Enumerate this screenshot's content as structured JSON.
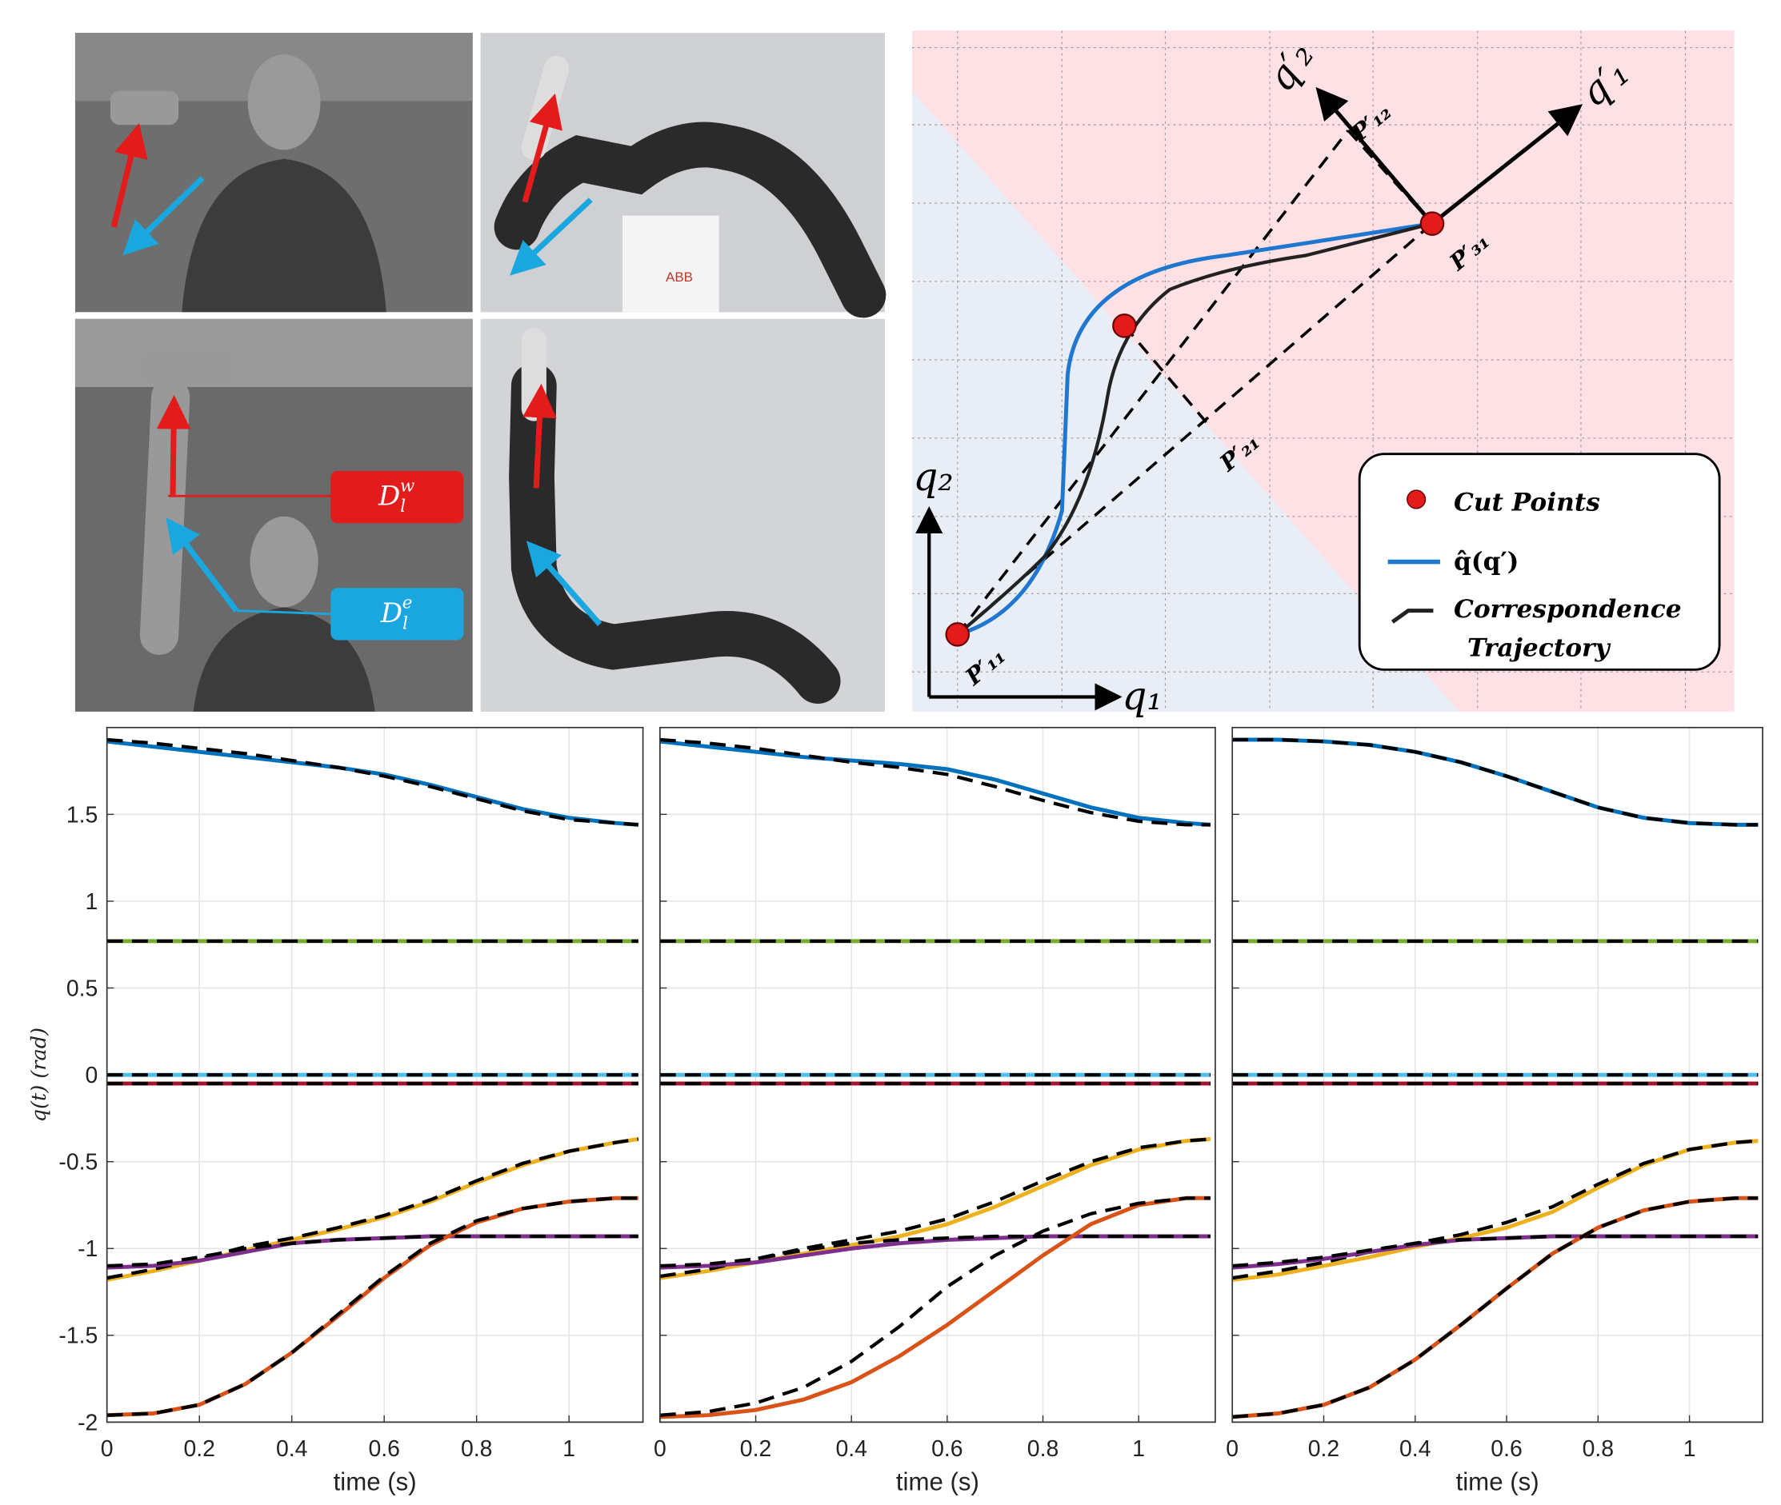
{
  "photos": {
    "label_wrist": {
      "base": "D",
      "sub": "l",
      "sup": "w"
    },
    "label_elbow": {
      "base": "D",
      "sub": "l",
      "sup": "e"
    },
    "robot_brand": "ABB"
  },
  "diagram": {
    "axis_q1_prime": "q′₁",
    "axis_q2_prime": "q′₂",
    "axis_q1": "q₁",
    "axis_q2": "q₂",
    "points": [
      "P′₁₁",
      "P′₂₁",
      "P′₃₁",
      "P′₁₂"
    ],
    "legend": {
      "cut_points": "Cut Points",
      "q_hat": "q̂(q′)",
      "correspondence": "Correspondence",
      "trajectory": "Trajectory"
    }
  },
  "chart_data": [
    {
      "type": "line",
      "ylabel": "q(t)  (rad)",
      "xlabel": "time (s)",
      "xlim": [
        0,
        1.16
      ],
      "ylim": [
        -2,
        2
      ],
      "xticks": [
        0,
        0.2,
        0.4,
        0.6,
        0.8,
        1
      ],
      "yticks": [
        -2,
        -1.5,
        -1,
        -0.5,
        0,
        0.5,
        1,
        1.5
      ],
      "grid": true,
      "x": [
        0,
        0.1,
        0.2,
        0.3,
        0.4,
        0.5,
        0.6,
        0.7,
        0.8,
        0.9,
        1,
        1.1,
        1.15
      ],
      "series": [
        {
          "color": "#0072bd",
          "values": [
            1.92,
            1.89,
            1.86,
            1.83,
            1.8,
            1.77,
            1.73,
            1.67,
            1.6,
            1.53,
            1.48,
            1.45,
            1.44
          ]
        },
        {
          "color": "#000000",
          "dash": true,
          "values": [
            1.93,
            1.91,
            1.88,
            1.85,
            1.81,
            1.77,
            1.72,
            1.66,
            1.59,
            1.52,
            1.47,
            1.45,
            1.44
          ]
        },
        {
          "color": "#77ac30",
          "values": [
            0.77,
            0.77,
            0.77,
            0.77,
            0.77,
            0.77,
            0.77,
            0.77,
            0.77,
            0.77,
            0.77,
            0.77,
            0.77
          ]
        },
        {
          "color": "#000000",
          "dash": true,
          "values": [
            0.77,
            0.77,
            0.77,
            0.77,
            0.77,
            0.77,
            0.77,
            0.77,
            0.77,
            0.77,
            0.77,
            0.77,
            0.77
          ]
        },
        {
          "color": "#4dbeee",
          "values": [
            0,
            0,
            0,
            0,
            0,
            0,
            0,
            0,
            0,
            0,
            0,
            0,
            0
          ]
        },
        {
          "color": "#000000",
          "dash": true,
          "values": [
            0,
            0,
            0,
            0,
            0,
            0,
            0,
            0,
            0,
            0,
            0,
            0,
            0
          ]
        },
        {
          "color": "#a2142f",
          "values": [
            -0.05,
            -0.05,
            -0.05,
            -0.05,
            -0.05,
            -0.05,
            -0.05,
            -0.05,
            -0.05,
            -0.05,
            -0.05,
            -0.05,
            -0.05
          ]
        },
        {
          "color": "#000000",
          "dash": true,
          "values": [
            -0.05,
            -0.05,
            -0.05,
            -0.05,
            -0.05,
            -0.05,
            -0.05,
            -0.05,
            -0.05,
            -0.05,
            -0.05,
            -0.05,
            -0.05
          ]
        },
        {
          "color": "#edb120",
          "values": [
            -1.18,
            -1.13,
            -1.07,
            -1.01,
            -0.95,
            -0.89,
            -0.82,
            -0.73,
            -0.62,
            -0.52,
            -0.44,
            -0.39,
            -0.37
          ]
        },
        {
          "color": "#000000",
          "dash": true,
          "values": [
            -1.17,
            -1.12,
            -1.06,
            -0.99,
            -0.94,
            -0.88,
            -0.81,
            -0.72,
            -0.61,
            -0.51,
            -0.44,
            -0.39,
            -0.37
          ]
        },
        {
          "color": "#7e2f8e",
          "values": [
            -1.11,
            -1.1,
            -1.07,
            -1.02,
            -0.97,
            -0.95,
            -0.94,
            -0.93,
            -0.93,
            -0.93,
            -0.93,
            -0.93,
            -0.93
          ]
        },
        {
          "color": "#000000",
          "dash": true,
          "values": [
            -1.1,
            -1.09,
            -1.05,
            -1.0,
            -0.97,
            -0.95,
            -0.94,
            -0.93,
            -0.93,
            -0.93,
            -0.93,
            -0.93,
            -0.93
          ]
        },
        {
          "color": "#d95319",
          "values": [
            -1.96,
            -1.95,
            -1.9,
            -1.78,
            -1.6,
            -1.39,
            -1.17,
            -0.98,
            -0.85,
            -0.77,
            -0.73,
            -0.71,
            -0.71
          ]
        },
        {
          "color": "#000000",
          "dash": true,
          "values": [
            -1.96,
            -1.95,
            -1.9,
            -1.78,
            -1.6,
            -1.38,
            -1.16,
            -0.97,
            -0.84,
            -0.77,
            -0.73,
            -0.71,
            -0.71
          ]
        }
      ]
    },
    {
      "type": "line",
      "xlabel": "time (s)",
      "xlim": [
        0,
        1.16
      ],
      "ylim": [
        -2,
        2
      ],
      "xticks": [
        0,
        0.2,
        0.4,
        0.6,
        0.8,
        1
      ],
      "yticks": [
        -2,
        -1.5,
        -1,
        -0.5,
        0,
        0.5,
        1,
        1.5
      ],
      "grid": true,
      "x": [
        0,
        0.1,
        0.2,
        0.3,
        0.4,
        0.5,
        0.6,
        0.7,
        0.8,
        0.9,
        1,
        1.1,
        1.15
      ],
      "series": [
        {
          "color": "#0072bd",
          "values": [
            1.92,
            1.89,
            1.86,
            1.83,
            1.81,
            1.79,
            1.76,
            1.7,
            1.62,
            1.54,
            1.48,
            1.45,
            1.44
          ]
        },
        {
          "color": "#000000",
          "dash": true,
          "values": [
            1.93,
            1.91,
            1.88,
            1.84,
            1.8,
            1.77,
            1.73,
            1.66,
            1.58,
            1.51,
            1.46,
            1.44,
            1.44
          ]
        },
        {
          "color": "#77ac30",
          "values": [
            0.77,
            0.77,
            0.77,
            0.77,
            0.77,
            0.77,
            0.77,
            0.77,
            0.77,
            0.77,
            0.77,
            0.77,
            0.77
          ]
        },
        {
          "color": "#000000",
          "dash": true,
          "values": [
            0.77,
            0.77,
            0.77,
            0.77,
            0.77,
            0.77,
            0.77,
            0.77,
            0.77,
            0.77,
            0.77,
            0.77,
            0.77
          ]
        },
        {
          "color": "#4dbeee",
          "values": [
            0,
            0,
            0,
            0,
            0,
            0,
            0,
            0,
            0,
            0,
            0,
            0,
            0
          ]
        },
        {
          "color": "#000000",
          "dash": true,
          "values": [
            0,
            0,
            0,
            0,
            0,
            0,
            0,
            0,
            0,
            0,
            0,
            0,
            0
          ]
        },
        {
          "color": "#a2142f",
          "values": [
            -0.05,
            -0.05,
            -0.05,
            -0.05,
            -0.05,
            -0.05,
            -0.05,
            -0.05,
            -0.05,
            -0.05,
            -0.05,
            -0.05,
            -0.05
          ]
        },
        {
          "color": "#000000",
          "dash": true,
          "values": [
            -0.05,
            -0.05,
            -0.05,
            -0.05,
            -0.05,
            -0.05,
            -0.05,
            -0.05,
            -0.05,
            -0.05,
            -0.05,
            -0.05,
            -0.05
          ]
        },
        {
          "color": "#edb120",
          "values": [
            -1.17,
            -1.13,
            -1.08,
            -1.03,
            -0.98,
            -0.93,
            -0.86,
            -0.76,
            -0.64,
            -0.52,
            -0.43,
            -0.38,
            -0.37
          ]
        },
        {
          "color": "#000000",
          "dash": true,
          "values": [
            -1.16,
            -1.12,
            -1.06,
            -1.0,
            -0.95,
            -0.9,
            -0.83,
            -0.73,
            -0.61,
            -0.5,
            -0.42,
            -0.38,
            -0.37
          ]
        },
        {
          "color": "#7e2f8e",
          "values": [
            -1.11,
            -1.1,
            -1.08,
            -1.04,
            -1.0,
            -0.97,
            -0.95,
            -0.94,
            -0.93,
            -0.93,
            -0.93,
            -0.93,
            -0.93
          ]
        },
        {
          "color": "#000000",
          "dash": true,
          "values": [
            -1.1,
            -1.09,
            -1.06,
            -1.01,
            -0.97,
            -0.95,
            -0.94,
            -0.93,
            -0.93,
            -0.93,
            -0.93,
            -0.93,
            -0.93
          ]
        },
        {
          "color": "#d95319",
          "values": [
            -1.97,
            -1.96,
            -1.93,
            -1.87,
            -1.77,
            -1.62,
            -1.44,
            -1.24,
            -1.04,
            -0.86,
            -0.75,
            -0.71,
            -0.71
          ]
        },
        {
          "color": "#000000",
          "dash": true,
          "values": [
            -1.96,
            -1.94,
            -1.89,
            -1.8,
            -1.65,
            -1.45,
            -1.22,
            -1.04,
            -0.9,
            -0.8,
            -0.74,
            -0.71,
            -0.71
          ]
        }
      ]
    },
    {
      "type": "line",
      "xlabel": "time (s)",
      "xlim": [
        0,
        1.16
      ],
      "ylim": [
        -2,
        2
      ],
      "xticks": [
        0,
        0.2,
        0.4,
        0.6,
        0.8,
        1
      ],
      "yticks": [
        -2,
        -1.5,
        -1,
        -0.5,
        0,
        0.5,
        1,
        1.5
      ],
      "grid": true,
      "x": [
        0,
        0.1,
        0.2,
        0.3,
        0.4,
        0.5,
        0.6,
        0.7,
        0.8,
        0.9,
        1,
        1.1,
        1.15
      ],
      "series": [
        {
          "color": "#0072bd",
          "values": [
            1.93,
            1.93,
            1.92,
            1.9,
            1.86,
            1.8,
            1.72,
            1.63,
            1.54,
            1.48,
            1.45,
            1.44,
            1.44
          ]
        },
        {
          "color": "#000000",
          "dash": true,
          "values": [
            1.93,
            1.93,
            1.92,
            1.9,
            1.86,
            1.8,
            1.72,
            1.63,
            1.54,
            1.48,
            1.45,
            1.44,
            1.44
          ]
        },
        {
          "color": "#77ac30",
          "values": [
            0.77,
            0.77,
            0.77,
            0.77,
            0.77,
            0.77,
            0.77,
            0.77,
            0.77,
            0.77,
            0.77,
            0.77,
            0.77
          ]
        },
        {
          "color": "#000000",
          "dash": true,
          "values": [
            0.77,
            0.77,
            0.77,
            0.77,
            0.77,
            0.77,
            0.77,
            0.77,
            0.77,
            0.77,
            0.77,
            0.77,
            0.77
          ]
        },
        {
          "color": "#4dbeee",
          "values": [
            0,
            0,
            0,
            0,
            0,
            0,
            0,
            0,
            0,
            0,
            0,
            0,
            0
          ]
        },
        {
          "color": "#000000",
          "dash": true,
          "values": [
            0,
            0,
            0,
            0,
            0,
            0,
            0,
            0,
            0,
            0,
            0,
            0,
            0
          ]
        },
        {
          "color": "#a2142f",
          "values": [
            -0.05,
            -0.05,
            -0.05,
            -0.05,
            -0.05,
            -0.05,
            -0.05,
            -0.05,
            -0.05,
            -0.05,
            -0.05,
            -0.05,
            -0.05
          ]
        },
        {
          "color": "#000000",
          "dash": true,
          "values": [
            -0.05,
            -0.05,
            -0.05,
            -0.05,
            -0.05,
            -0.05,
            -0.05,
            -0.05,
            -0.05,
            -0.05,
            -0.05,
            -0.05,
            -0.05
          ]
        },
        {
          "color": "#edb120",
          "values": [
            -1.18,
            -1.15,
            -1.1,
            -1.05,
            -0.99,
            -0.94,
            -0.88,
            -0.79,
            -0.65,
            -0.52,
            -0.43,
            -0.39,
            -0.38
          ]
        },
        {
          "color": "#000000",
          "dash": true,
          "values": [
            -1.17,
            -1.13,
            -1.08,
            -1.02,
            -0.97,
            -0.92,
            -0.85,
            -0.76,
            -0.63,
            -0.51,
            -0.43,
            -0.39,
            -0.38
          ]
        },
        {
          "color": "#7e2f8e",
          "values": [
            -1.11,
            -1.09,
            -1.06,
            -1.02,
            -0.98,
            -0.95,
            -0.94,
            -0.93,
            -0.93,
            -0.93,
            -0.93,
            -0.93,
            -0.93
          ]
        },
        {
          "color": "#000000",
          "dash": true,
          "values": [
            -1.1,
            -1.08,
            -1.05,
            -1.01,
            -0.97,
            -0.95,
            -0.94,
            -0.93,
            -0.93,
            -0.93,
            -0.93,
            -0.93,
            -0.93
          ]
        },
        {
          "color": "#d95319",
          "values": [
            -1.97,
            -1.95,
            -1.9,
            -1.8,
            -1.64,
            -1.44,
            -1.23,
            -1.03,
            -0.88,
            -0.78,
            -0.73,
            -0.71,
            -0.71
          ]
        },
        {
          "color": "#000000",
          "dash": true,
          "values": [
            -1.97,
            -1.95,
            -1.9,
            -1.8,
            -1.64,
            -1.44,
            -1.23,
            -1.03,
            -0.88,
            -0.78,
            -0.73,
            -0.71,
            -0.71
          ]
        }
      ]
    }
  ]
}
